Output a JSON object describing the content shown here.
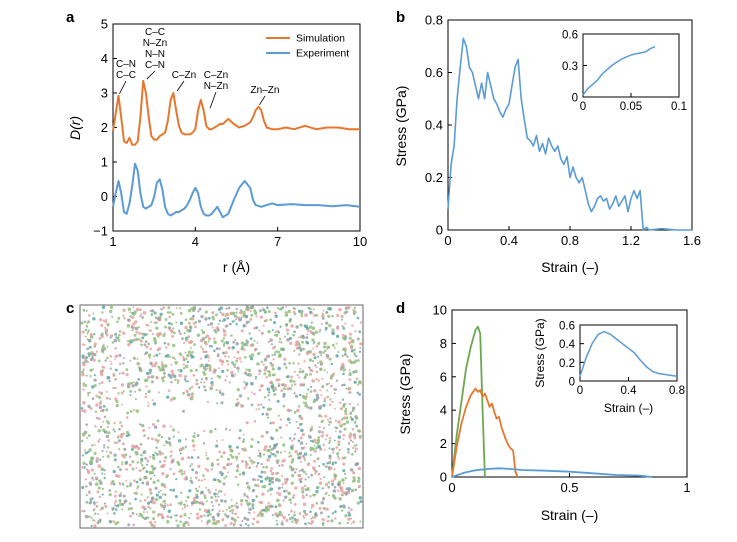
{
  "colors": {
    "orange": "#E8772E",
    "blue": "#5B9BD5",
    "green": "#6AA84F",
    "atom_pink": "#E8A0A0",
    "atom_green": "#8FBF7A",
    "atom_grey": "#9AA0A8",
    "atom_teal": "#5EA6A6"
  },
  "chart_data": [
    {
      "panel": "a",
      "type": "line",
      "xlabel": "r (Å)",
      "ylabel": "D(r)",
      "xlim": [
        1,
        10
      ],
      "ylim": [
        -1,
        5
      ],
      "xticks": [
        "1",
        "4",
        "7",
        "10"
      ],
      "yticks": [
        "−1",
        "0",
        "1",
        "2",
        "3",
        "4",
        "5"
      ],
      "legend": [
        "Simulation",
        "Experiment"
      ],
      "legend_position": "top-right",
      "annotations": [
        {
          "lines": [
            "C–N",
            "C–C"
          ],
          "x": 1.2
        },
        {
          "lines": [
            "C–C",
            "N–Zn",
            "N–N",
            "C–N"
          ],
          "x": 2.2
        },
        {
          "lines": [
            "C–Zn"
          ],
          "x": 3.3
        },
        {
          "lines": [
            "C–Zn",
            "N–Zn"
          ],
          "x": 4.5
        },
        {
          "lines": [
            "Zn–Zn"
          ],
          "x": 6.3
        }
      ],
      "series": [
        {
          "name": "Simulation",
          "color": "orange",
          "x": [
            1.0,
            1.1,
            1.2,
            1.3,
            1.4,
            1.5,
            1.6,
            1.7,
            1.8,
            1.9,
            2.0,
            2.1,
            2.2,
            2.3,
            2.4,
            2.5,
            2.6,
            2.7,
            2.8,
            2.9,
            3.0,
            3.1,
            3.2,
            3.3,
            3.4,
            3.5,
            3.6,
            3.7,
            3.8,
            3.9,
            4.0,
            4.1,
            4.2,
            4.3,
            4.4,
            4.5,
            4.6,
            4.7,
            4.8,
            4.9,
            5.0,
            5.2,
            5.4,
            5.6,
            5.8,
            6.0,
            6.1,
            6.2,
            6.3,
            6.4,
            6.5,
            6.6,
            6.8,
            7.0,
            7.3,
            7.6,
            8.0,
            8.4,
            8.8,
            9.2,
            9.6,
            10.0
          ],
          "y": [
            1.9,
            2.4,
            2.92,
            2.3,
            1.6,
            1.55,
            1.7,
            1.5,
            1.5,
            1.6,
            2.3,
            3.35,
            3.0,
            2.3,
            1.75,
            1.65,
            1.65,
            1.75,
            1.8,
            1.85,
            2.2,
            2.8,
            3.0,
            2.5,
            2.05,
            1.85,
            1.8,
            1.8,
            1.8,
            1.85,
            1.95,
            2.5,
            2.8,
            2.5,
            2.05,
            1.95,
            1.95,
            2.0,
            2.05,
            2.1,
            2.1,
            2.25,
            2.1,
            2.0,
            2.05,
            2.15,
            2.3,
            2.5,
            2.6,
            2.5,
            2.2,
            2.0,
            1.95,
            1.95,
            2.0,
            1.95,
            2.05,
            1.95,
            2.0,
            2.0,
            1.95,
            1.95
          ]
        },
        {
          "name": "Experiment",
          "color": "blue",
          "x": [
            1.0,
            1.1,
            1.2,
            1.3,
            1.4,
            1.5,
            1.6,
            1.7,
            1.8,
            1.9,
            2.0,
            2.1,
            2.2,
            2.3,
            2.4,
            2.5,
            2.6,
            2.7,
            2.8,
            2.9,
            3.0,
            3.1,
            3.2,
            3.3,
            3.4,
            3.5,
            3.6,
            3.7,
            3.8,
            3.9,
            4.0,
            4.1,
            4.2,
            4.3,
            4.4,
            4.5,
            4.6,
            4.8,
            5.0,
            5.2,
            5.4,
            5.6,
            5.8,
            6.0,
            6.1,
            6.2,
            6.4,
            6.6,
            6.8,
            7.0,
            7.5,
            8.0,
            8.5,
            9.0,
            9.5,
            10.0
          ],
          "y": [
            -0.3,
            0.1,
            0.45,
            0.1,
            -0.45,
            -0.5,
            -0.2,
            0.3,
            0.95,
            0.75,
            0.1,
            -0.3,
            -0.35,
            -0.3,
            -0.25,
            0.0,
            0.4,
            0.5,
            0.2,
            -0.3,
            -0.5,
            -0.55,
            -0.5,
            -0.45,
            -0.45,
            -0.4,
            -0.35,
            -0.25,
            -0.1,
            0.1,
            0.25,
            0.1,
            -0.3,
            -0.5,
            -0.55,
            -0.55,
            -0.5,
            -0.3,
            -0.6,
            -0.5,
            -0.1,
            0.25,
            0.45,
            0.25,
            -0.1,
            -0.25,
            -0.3,
            -0.25,
            -0.2,
            -0.25,
            -0.22,
            -0.25,
            -0.25,
            -0.28,
            -0.25,
            -0.3
          ]
        }
      ]
    },
    {
      "panel": "b",
      "type": "line",
      "xlabel": "Strain (–)",
      "ylabel": "Stress (GPa)",
      "xlim": [
        0,
        1.6
      ],
      "ylim": [
        0,
        0.8
      ],
      "xticks": [
        "0",
        "0.4",
        "0.8",
        "1.2",
        "1.6"
      ],
      "yticks": [
        "0",
        "0.2",
        "0.4",
        "0.6",
        "0.8"
      ],
      "series": [
        {
          "name": "main",
          "color": "blue",
          "x": [
            0,
            0.02,
            0.04,
            0.06,
            0.08,
            0.1,
            0.12,
            0.14,
            0.16,
            0.18,
            0.2,
            0.22,
            0.24,
            0.26,
            0.28,
            0.3,
            0.32,
            0.34,
            0.36,
            0.38,
            0.4,
            0.42,
            0.44,
            0.46,
            0.48,
            0.5,
            0.52,
            0.54,
            0.56,
            0.58,
            0.6,
            0.62,
            0.64,
            0.66,
            0.68,
            0.7,
            0.72,
            0.74,
            0.76,
            0.78,
            0.8,
            0.82,
            0.84,
            0.86,
            0.88,
            0.9,
            0.92,
            0.94,
            0.96,
            0.98,
            1.0,
            1.02,
            1.04,
            1.06,
            1.08,
            1.1,
            1.12,
            1.14,
            1.16,
            1.18,
            1.2,
            1.22,
            1.24,
            1.26,
            1.28,
            1.3,
            1.32,
            1.4,
            1.5,
            1.6
          ],
          "y": [
            0.08,
            0.25,
            0.32,
            0.5,
            0.62,
            0.73,
            0.7,
            0.62,
            0.6,
            0.55,
            0.5,
            0.56,
            0.5,
            0.6,
            0.55,
            0.5,
            0.48,
            0.45,
            0.43,
            0.46,
            0.48,
            0.55,
            0.62,
            0.65,
            0.5,
            0.42,
            0.35,
            0.34,
            0.32,
            0.36,
            0.3,
            0.33,
            0.29,
            0.35,
            0.32,
            0.3,
            0.32,
            0.27,
            0.25,
            0.28,
            0.2,
            0.24,
            0.2,
            0.18,
            0.2,
            0.15,
            0.1,
            0.07,
            0.09,
            0.12,
            0.13,
            0.11,
            0.12,
            0.08,
            0.1,
            0.13,
            0.09,
            0.11,
            0.13,
            0.07,
            0.12,
            0.15,
            0.12,
            0.15,
            0.0,
            0.01,
            0.0,
            0.005,
            0.0,
            0.0
          ]
        },
        {
          "name": "inset",
          "color": "blue",
          "inset": true,
          "xlim": [
            0,
            0.1
          ],
          "ylim": [
            0,
            0.6
          ],
          "xticks": [
            "0",
            "0.05",
            "0.1"
          ],
          "yticks": [
            "0",
            "0.3",
            "0.6"
          ],
          "x": [
            0,
            0.005,
            0.01,
            0.015,
            0.02,
            0.025,
            0.03,
            0.035,
            0.04,
            0.045,
            0.05,
            0.055,
            0.06,
            0.065,
            0.07,
            0.075
          ],
          "y": [
            0.02,
            0.08,
            0.12,
            0.16,
            0.22,
            0.26,
            0.3,
            0.33,
            0.36,
            0.38,
            0.4,
            0.41,
            0.42,
            0.43,
            0.46,
            0.48
          ]
        }
      ]
    },
    {
      "panel": "d",
      "type": "line",
      "xlabel": "Strain (–)",
      "ylabel": "Stress (GPa)",
      "xlim": [
        0,
        1
      ],
      "ylim": [
        0,
        10
      ],
      "xticks": [
        "0",
        "0.5",
        "1"
      ],
      "yticks": [
        "0",
        "2",
        "4",
        "6",
        "8",
        "10"
      ],
      "series": [
        {
          "name": "green",
          "color": "green",
          "x": [
            0,
            0.02,
            0.04,
            0.06,
            0.08,
            0.1,
            0.11,
            0.12,
            0.13,
            0.14
          ],
          "y": [
            0,
            2.5,
            4.5,
            6.5,
            7.8,
            8.8,
            9.0,
            8.6,
            4.0,
            0.0
          ]
        },
        {
          "name": "orange",
          "color": "orange",
          "x": [
            0,
            0.02,
            0.04,
            0.06,
            0.08,
            0.1,
            0.11,
            0.12,
            0.13,
            0.14,
            0.15,
            0.16,
            0.17,
            0.18,
            0.19,
            0.2,
            0.21,
            0.22,
            0.23,
            0.24,
            0.25,
            0.26,
            0.27,
            0.28
          ],
          "y": [
            0,
            1.8,
            3.2,
            4.2,
            4.9,
            5.3,
            5.1,
            5.2,
            4.8,
            5.0,
            4.6,
            4.2,
            4.4,
            3.9,
            3.5,
            3.6,
            3.0,
            2.6,
            2.2,
            1.9,
            1.7,
            1.6,
            0.3,
            0.0
          ]
        },
        {
          "name": "blue",
          "color": "blue",
          "x": [
            0,
            0.05,
            0.1,
            0.15,
            0.2,
            0.25,
            0.3,
            0.4,
            0.5,
            0.6,
            0.7,
            0.8,
            0.85
          ],
          "y": [
            0,
            0.25,
            0.4,
            0.48,
            0.52,
            0.48,
            0.42,
            0.38,
            0.32,
            0.22,
            0.12,
            0.08,
            0.0
          ]
        },
        {
          "name": "inset",
          "color": "blue",
          "inset": true,
          "xlabel": "Strain (–)",
          "ylabel": "Stress (GPa)",
          "xlim": [
            0,
            0.8
          ],
          "ylim": [
            0,
            0.6
          ],
          "xticks": [
            "0",
            "0.4",
            "0.8"
          ],
          "yticks": [
            "0",
            "0.2",
            "0.4",
            "0.6"
          ],
          "x": [
            0,
            0.05,
            0.1,
            0.15,
            0.2,
            0.25,
            0.3,
            0.35,
            0.4,
            0.45,
            0.5,
            0.55,
            0.6,
            0.65,
            0.7,
            0.75,
            0.8
          ],
          "y": [
            0.05,
            0.25,
            0.4,
            0.5,
            0.53,
            0.5,
            0.45,
            0.4,
            0.35,
            0.3,
            0.22,
            0.15,
            0.1,
            0.08,
            0.07,
            0.06,
            0.05
          ]
        }
      ]
    }
  ],
  "panel_c": {
    "label": "c",
    "type": "atomistic-snapshot"
  },
  "panel_labels": {
    "a": "a",
    "b": "b",
    "c": "c",
    "d": "d"
  }
}
